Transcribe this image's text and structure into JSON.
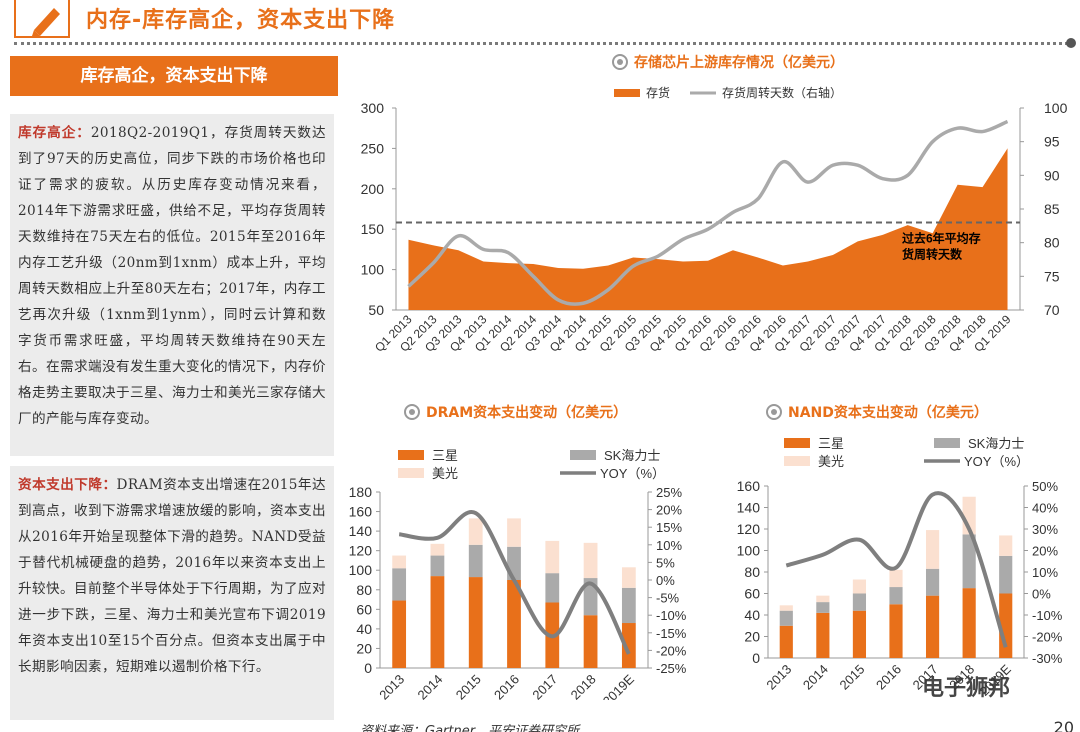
{
  "header": {
    "title": "内存-库存高企，资本支出下降",
    "page_number": "20"
  },
  "left": {
    "banner": "库存高企，资本支出下降",
    "p1_lead": "库存高企：",
    "p1_body": "2018Q2-2019Q1，存货周转天数达到了97天的历史高位，同步下跌的市场价格也印证了需求的疲软。从历史库存变动情况来看，2014年下游需求旺盛，供给不足，平均存货周转天数维持在75天左右的低位。2015年至2016年内存工艺升级（20nm到1xnm）成本上升，平均周转天数相应上升至80天左右；2017年，内存工艺再次升级（1xnm到1ynm），同时云计算和数字货币需求旺盛，平均周转天数维持在90天左右。在需求端没有发生重大变化的情况下，内存价格走势主要取决于三星、海力士和美光三家存储大厂的产能与库存变动。",
    "p2_lead": "资本支出下降：",
    "p2_body": "DRAM资本支出增速在2015年达到高点，收到下游需求增速放缓的影响，资本支出从2016年开始呈现整体下滑的趋势。NAND受益于替代机械硬盘的趋势，2016年以来资本支出上升较快。目前整个半导体处于下行周期，为了应对进一步下跌，三星、海力士和美光宣布下调2019年资本支出10至15个百分点。但资本支出属于中长期影响因素，短期难以遏制价格下行。"
  },
  "source": "资料来源：Gartner，平安证券研究所",
  "watermark": "电子狮邦",
  "colors": {
    "orange": "#e8701a",
    "gray": "#aaaaaa",
    "peach": "#fbe0d0",
    "line_dark": "#7f7f7f"
  },
  "chart_data": [
    {
      "type": "area",
      "title": "存储芯片上游库存情况（亿美元）",
      "legend": [
        "存货",
        "存货周转天数（右轴）"
      ],
      "categories": [
        "Q1 2013",
        "Q2 2013",
        "Q3 2013",
        "Q4 2013",
        "Q1 2014",
        "Q2 2014",
        "Q3 2014",
        "Q4 2014",
        "Q1 2015",
        "Q2 2015",
        "Q3 2015",
        "Q4 2015",
        "Q1 2016",
        "Q2 2016",
        "Q3 2016",
        "Q4 2016",
        "Q1 2017",
        "Q2 2017",
        "Q3 2017",
        "Q4 2017",
        "Q1 2018",
        "Q2 2018",
        "Q3 2018",
        "Q4 2018",
        "Q1 2019"
      ],
      "series": [
        {
          "name": "存货",
          "axis": "left",
          "values": [
            137,
            130,
            124,
            110,
            108,
            107,
            102,
            101,
            105,
            115,
            113,
            110,
            111,
            124,
            115,
            105,
            110,
            118,
            135,
            143,
            155,
            145,
            205,
            202,
            250
          ]
        },
        {
          "name": "存货周转天数（右轴）",
          "axis": "right",
          "values": [
            73.5,
            77,
            81,
            79,
            78.5,
            75,
            71.5,
            71,
            73,
            76.5,
            78,
            80.5,
            82,
            84.5,
            86.5,
            92,
            89,
            91.5,
            91.5,
            89.5,
            90,
            95,
            97,
            96.5,
            98
          ]
        }
      ],
      "ylim": [
        50,
        300
      ],
      "yticks": [
        50,
        100,
        150,
        200,
        250,
        300
      ],
      "y2lim": [
        70,
        100
      ],
      "y2ticks": [
        70,
        75,
        80,
        85,
        90,
        95,
        100
      ],
      "reference_line": {
        "axis": "right",
        "value": 83,
        "label_line1": "过去6年平均存",
        "label_line2": "货周转天数"
      }
    },
    {
      "type": "bar",
      "title": "DRAM资本支出变动（亿美元）",
      "categories": [
        "2013",
        "2014",
        "2015",
        "2016",
        "2017",
        "2018",
        "2019E"
      ],
      "legend": [
        "三星",
        "SK海力士",
        "美光",
        "YOY（%）"
      ],
      "series": [
        {
          "name": "三星",
          "values": [
            69,
            94,
            93,
            90,
            67,
            54,
            46
          ]
        },
        {
          "name": "SK海力士",
          "values": [
            33,
            21,
            33,
            34,
            30,
            38,
            36
          ]
        },
        {
          "name": "美光",
          "values": [
            13,
            12,
            27,
            29,
            33,
            36,
            21
          ]
        },
        {
          "name": "YOY（%）",
          "axis": "right",
          "values": [
            13,
            12,
            19,
            0,
            -16,
            -1,
            -21
          ]
        }
      ],
      "ylim": [
        0,
        180
      ],
      "yticks": [
        0,
        20,
        40,
        60,
        80,
        100,
        120,
        140,
        160,
        180
      ],
      "y2lim": [
        -25,
        25
      ],
      "y2ticks": [
        25,
        20,
        15,
        10,
        5,
        0,
        -5,
        -10,
        -15,
        -20,
        -25
      ],
      "y2tick_labels": [
        "25%",
        "20%",
        "15%",
        "10%",
        "5%",
        "0%",
        "-5%",
        "-10%",
        "-15%",
        "-20%",
        "-25%"
      ]
    },
    {
      "type": "bar",
      "title": "NAND资本支出变动（亿美元）",
      "categories": [
        "2013",
        "2014",
        "2015",
        "2016",
        "2017",
        "2018",
        "2019E"
      ],
      "legend": [
        "三星",
        "SK海力士",
        "美光",
        "YOY（%）"
      ],
      "series": [
        {
          "name": "三星",
          "values": [
            30,
            42,
            44,
            50,
            58,
            65,
            60
          ]
        },
        {
          "name": "SK海力士",
          "values": [
            14,
            10,
            16,
            16,
            25,
            50,
            35
          ]
        },
        {
          "name": "美光",
          "values": [
            5,
            6,
            13,
            16,
            36,
            35,
            19
          ]
        },
        {
          "name": "YOY（%）",
          "axis": "right",
          "values": [
            13,
            18,
            25,
            12,
            46,
            30,
            -25
          ]
        }
      ],
      "ylim": [
        0,
        160
      ],
      "yticks": [
        0,
        20,
        40,
        60,
        80,
        100,
        120,
        140,
        160
      ],
      "y2lim": [
        -30,
        50
      ],
      "y2ticks": [
        50,
        40,
        30,
        20,
        10,
        0,
        -10,
        -20,
        -30
      ],
      "y2tick_labels": [
        "50%",
        "40%",
        "30%",
        "20%",
        "10%",
        "0%",
        "-10%",
        "-20%",
        "-30%"
      ]
    }
  ]
}
